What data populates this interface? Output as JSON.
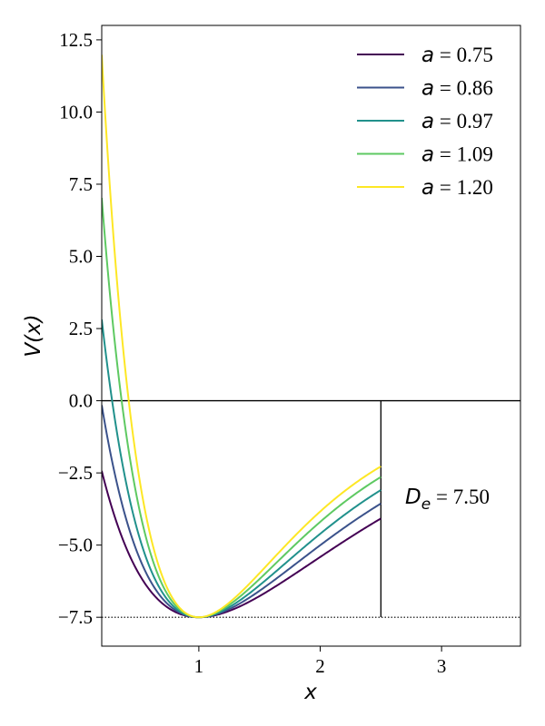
{
  "chart_data": {
    "type": "line",
    "xlabel": "x",
    "ylabel": "V(x)",
    "xlim": [
      0.2,
      3.65
    ],
    "ylim": [
      -8.5,
      13.0
    ],
    "x_ticks": [
      1,
      2,
      3
    ],
    "y_ticks": [
      -7.5,
      -5.0,
      -2.5,
      0.0,
      2.5,
      5.0,
      7.5,
      10.0,
      12.5
    ],
    "y_tick_labels": [
      "−7.5",
      "−5.0",
      "−2.5",
      "0.0",
      "2.5",
      "5.0",
      "7.5",
      "10.0",
      "12.5"
    ],
    "x_tick_labels": [
      "1",
      "2",
      "3"
    ],
    "grid": false,
    "legend_position": "top-right",
    "series": [
      {
        "name": "a = 0.75",
        "a": 0.75,
        "color": "#440154",
        "x_range": [
          0.2,
          2.5
        ]
      },
      {
        "name": "a = 0.86",
        "a": 0.86,
        "color": "#3b528b",
        "x_range": [
          0.2,
          2.5
        ]
      },
      {
        "name": "a = 0.97",
        "a": 0.97,
        "color": "#21918c",
        "x_range": [
          0.2,
          2.5
        ]
      },
      {
        "name": "a = 1.09",
        "a": 1.09,
        "color": "#5ec962",
        "x_range": [
          0.2,
          2.5
        ]
      },
      {
        "name": "a = 1.20",
        "a": 1.2,
        "color": "#fde725",
        "x_range": [
          0.2,
          2.5
        ]
      }
    ],
    "model": {
      "De": 7.5,
      "x0": 1.0,
      "formula": "V(x) = De*(1-exp(-a*(x-x0)))^2 - De"
    },
    "reference_lines": {
      "horizontal_zero": 0.0,
      "dotted_minimum": -7.5,
      "vertical_x": 2.5
    },
    "annotation": {
      "var": "D",
      "sub": "e",
      "text": " = 7.50",
      "x": 2.7,
      "y": -3.5
    }
  }
}
